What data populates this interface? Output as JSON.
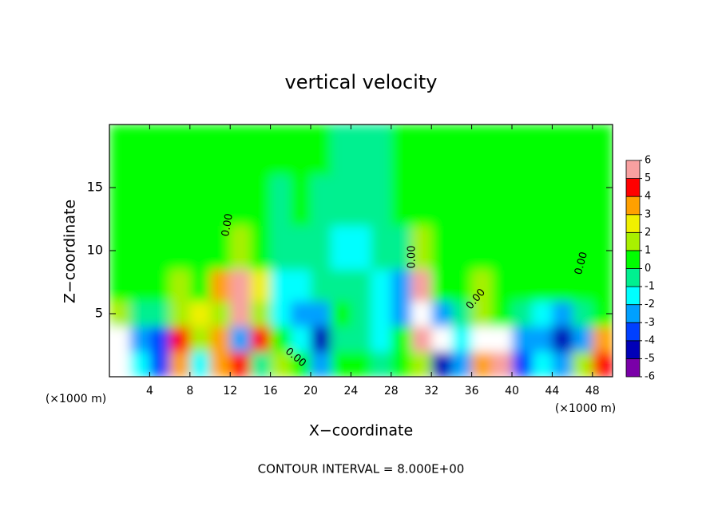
{
  "chart_data": {
    "type": "heatmap",
    "title": "vertical velocity",
    "x_label": "X−coordinate",
    "y_label": "Z−coordinate",
    "x_unit": "(×1000 m)",
    "footer": "CONTOUR INTERVAL = 8.000E+00",
    "contour_label": "0.00",
    "xlim": [
      0,
      50
    ],
    "ylim": [
      0,
      20
    ],
    "xticks": [
      4,
      8,
      12,
      16,
      20,
      24,
      28,
      32,
      36,
      40,
      44,
      48
    ],
    "yticks": [
      5,
      10,
      15
    ],
    "x": [
      1,
      3,
      5,
      7,
      9,
      11,
      13,
      15,
      17,
      19,
      21,
      23,
      25,
      27,
      29,
      31,
      33,
      35,
      37,
      39,
      41,
      43,
      45,
      47,
      49
    ],
    "z": [
      1,
      3,
      5,
      7,
      10,
      14,
      18
    ],
    "values": [
      [
        7,
        -2,
        -4,
        3,
        -2,
        3,
        4,
        -1,
        1,
        0,
        -3,
        0,
        0,
        -1,
        0,
        1,
        -5,
        -3,
        3,
        6,
        -4,
        -2,
        -3,
        1,
        4
      ],
      [
        7,
        -3,
        -4,
        4,
        1,
        3,
        -3,
        4,
        0,
        -2,
        -5,
        -1,
        -1,
        -2,
        0,
        6,
        -7,
        -2,
        7,
        7,
        -3,
        -3,
        -5,
        -3,
        3
      ],
      [
        1,
        -1,
        -1,
        1,
        2,
        1,
        5,
        1,
        -2,
        -3,
        -3,
        0,
        -1,
        -2,
        -3,
        7,
        -3,
        -1,
        1,
        0,
        -1,
        -2,
        -3,
        -1,
        0
      ],
      [
        0,
        0,
        0,
        1,
        0,
        3,
        6,
        2,
        -2,
        -2,
        -1,
        -1,
        -1,
        -2,
        -3,
        5,
        0,
        0,
        1,
        0,
        0,
        0,
        0,
        0,
        0
      ],
      [
        0,
        0,
        0,
        0,
        0,
        0,
        1,
        0,
        -1,
        -1,
        -1,
        -2,
        -2,
        -1,
        -1,
        1,
        0,
        0,
        0,
        0,
        0,
        0,
        0,
        0,
        0
      ],
      [
        0,
        0,
        0,
        0,
        0,
        0,
        0,
        0,
        -1,
        0,
        -1,
        -1,
        -1,
        -1,
        0,
        0,
        0,
        0,
        0,
        0,
        0,
        0,
        0,
        0,
        0
      ],
      [
        0,
        0,
        0,
        0,
        0,
        0,
        0,
        0,
        0,
        0,
        0,
        -1,
        -1,
        -1,
        0,
        0,
        0,
        0,
        0,
        0,
        0,
        0,
        0,
        0,
        0
      ]
    ],
    "colorbar_ticks": [
      -6,
      -5,
      -4,
      -3,
      -2,
      -1,
      0,
      1,
      2,
      3,
      4,
      5,
      6
    ],
    "colors": [
      "#7a00a8",
      "#0000b8",
      "#0040ff",
      "#00a0ff",
      "#00ffff",
      "#00f090",
      "#00ff00",
      "#a8f000",
      "#f0f000",
      "#ffa000",
      "#ff0000",
      "#f8a0a0"
    ],
    "over_color": "#ffffff"
  }
}
